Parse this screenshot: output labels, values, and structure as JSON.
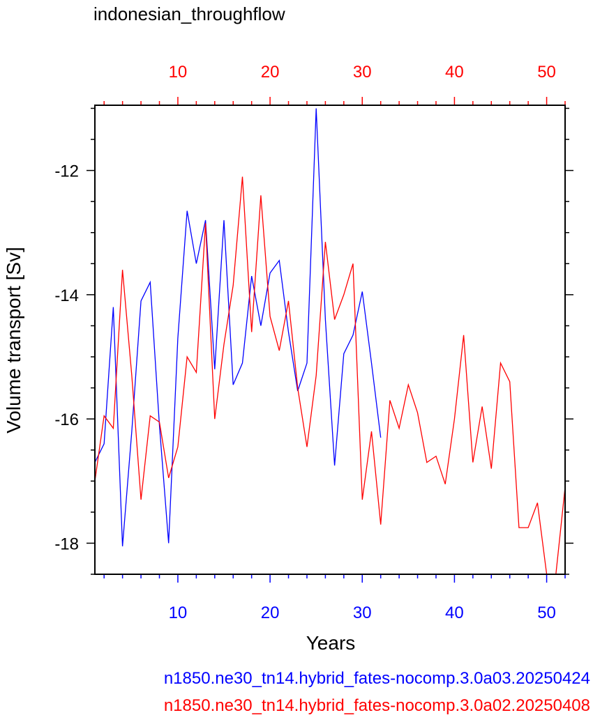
{
  "chart_data": {
    "type": "line",
    "title": "indonesian_throughflow",
    "xlabel": "Years",
    "ylabel": "Volume transport [Sv]",
    "xlim": [
      1,
      52
    ],
    "ylim": [
      -18.5,
      -10.95
    ],
    "yticks_major": [
      -12,
      -14,
      -16,
      -18
    ],
    "yticks_major_labels": [
      "-12",
      "-14",
      "-16",
      "-18"
    ],
    "yticks_minor": [
      -11,
      -11.5,
      -12.5,
      -13,
      -13.5,
      -14.5,
      -15,
      -15.5,
      -16.5,
      -17,
      -17.5,
      -18.5
    ],
    "xticks_major": [
      10,
      20,
      30,
      40,
      50
    ],
    "xticks_bottom_labels": [
      "10",
      "20",
      "30",
      "40",
      "50"
    ],
    "xticks_top_labels": [
      "10",
      "20",
      "30",
      "40",
      "50"
    ],
    "xticks_minor": [
      2,
      4,
      6,
      8,
      12,
      14,
      16,
      18,
      22,
      24,
      26,
      28,
      32,
      34,
      36,
      38,
      42,
      44,
      46,
      48,
      52
    ],
    "bottom_axis_color": "#0000ff",
    "top_axis_color": "#ff0000",
    "grid": false,
    "series": [
      {
        "name": "n1850.ne30_tn14.hybrid_fates-nocomp.3.0a03.20250424",
        "color": "#0000ff",
        "x": [
          1,
          2,
          3,
          4,
          5,
          6,
          7,
          8,
          9,
          10,
          11,
          12,
          13,
          14,
          15,
          16,
          17,
          18,
          19,
          20,
          21,
          22,
          23,
          24,
          25,
          26,
          27,
          28,
          29,
          30,
          31,
          32
        ],
        "values": [
          -16.7,
          -16.4,
          -14.2,
          -18.05,
          -16.2,
          -14.1,
          -13.8,
          -16.1,
          -18.0,
          -14.7,
          -12.65,
          -13.5,
          -12.8,
          -15.2,
          -12.8,
          -15.45,
          -15.1,
          -13.7,
          -14.5,
          -13.65,
          -13.45,
          -14.6,
          -15.55,
          -15.1,
          -11.0,
          -14.4,
          -16.75,
          -14.95,
          -14.65,
          -13.95,
          -15.1,
          -16.3
        ]
      },
      {
        "name": "n1850.ne30_tn14.hybrid_fates-nocomp.3.0a02.20250408",
        "color": "#ff0000",
        "x": [
          1,
          2,
          3,
          4,
          5,
          6,
          7,
          8,
          9,
          10,
          11,
          12,
          13,
          14,
          15,
          16,
          17,
          18,
          19,
          20,
          21,
          22,
          23,
          24,
          25,
          26,
          27,
          28,
          29,
          30,
          31,
          32,
          33,
          34,
          35,
          36,
          37,
          38,
          39,
          40,
          41,
          42,
          43,
          44,
          45,
          46,
          47,
          48,
          49,
          50,
          51,
          52
        ],
        "values": [
          -17.0,
          -15.95,
          -16.15,
          -13.6,
          -15.3,
          -17.3,
          -15.95,
          -16.05,
          -16.95,
          -16.45,
          -15.0,
          -15.25,
          -12.85,
          -16.0,
          -14.8,
          -13.85,
          -12.1,
          -14.6,
          -12.4,
          -14.35,
          -14.9,
          -14.1,
          -15.5,
          -16.45,
          -15.3,
          -13.15,
          -14.4,
          -14.0,
          -13.5,
          -17.3,
          -16.2,
          -17.7,
          -15.7,
          -16.15,
          -15.45,
          -15.9,
          -16.7,
          -16.6,
          -17.05,
          -16.0,
          -14.65,
          -16.7,
          -15.8,
          -16.8,
          -15.1,
          -15.4,
          -17.75,
          -17.75,
          -17.35,
          -18.5,
          -18.5,
          -17.1
        ]
      }
    ]
  }
}
